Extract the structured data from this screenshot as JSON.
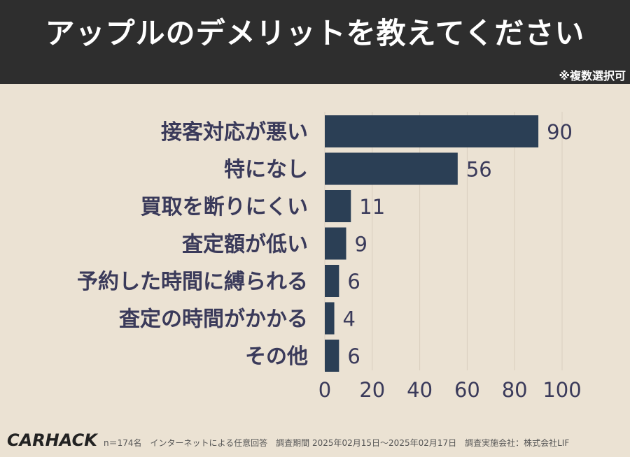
{
  "title": "アップルのデメリットを教えてください",
  "note": "※複数選択可",
  "footer": {
    "logo": "CARHACK",
    "footnote": "n＝174名　インターネットによる任意回答　調査期間 2025年02月15日〜2025年02月17日　調査実施会社：株式会社LIF"
  },
  "colors": {
    "bar": "#2b3f55",
    "label": "#3a3a5a",
    "header_bg": "#2e2e2e",
    "panel_bg": "#ebe2d3"
  },
  "chart_data": {
    "type": "bar",
    "orientation": "horizontal",
    "categories": [
      "接客対応が悪い",
      "特になし",
      "買取を断りにくい",
      "査定額が低い",
      "予約した時間に縛られる",
      "査定の時間がかかる",
      "その他"
    ],
    "values": [
      90,
      56,
      11,
      9,
      6,
      4,
      6
    ],
    "xlim": [
      0,
      100
    ],
    "xticks": [
      "0",
      "20",
      "40",
      "60",
      "80",
      "100"
    ],
    "grid": true
  }
}
